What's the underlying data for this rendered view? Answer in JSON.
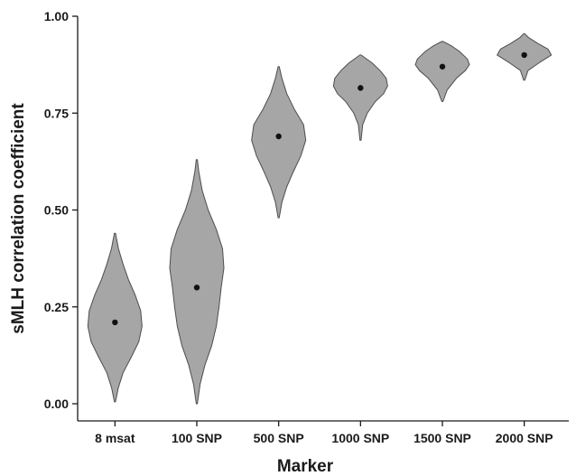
{
  "chart_data": {
    "type": "violin",
    "title": "",
    "xlabel": "Marker",
    "ylabel": "sMLH correlation coefficient",
    "ylim": [
      0,
      1
    ],
    "yticks": [
      {
        "value": 0.0,
        "label": "0.00"
      },
      {
        "value": 0.25,
        "label": "0.25"
      },
      {
        "value": 0.5,
        "label": "0.50"
      },
      {
        "value": 0.75,
        "label": "0.75"
      },
      {
        "value": 1.0,
        "label": "1.00"
      }
    ],
    "grid": false,
    "legend": "none",
    "colors": {
      "violin_fill": "#a6a6a6",
      "violin_stroke": "#4d4d4d",
      "point": "#111111",
      "axis": "#1a1a1a"
    },
    "categories": [
      "8 msat",
      "100 SNP",
      "500 SNP",
      "1000 SNP",
      "1500 SNP",
      "2000 SNP"
    ],
    "series": [
      {
        "category": "8 msat",
        "median": 0.21,
        "min": 0.005,
        "max": 0.44,
        "density": [
          [
            0.005,
            0.01
          ],
          [
            0.04,
            0.12
          ],
          [
            0.08,
            0.3
          ],
          [
            0.12,
            0.6
          ],
          [
            0.16,
            0.88
          ],
          [
            0.2,
            1.0
          ],
          [
            0.24,
            0.95
          ],
          [
            0.28,
            0.75
          ],
          [
            0.32,
            0.5
          ],
          [
            0.36,
            0.3
          ],
          [
            0.4,
            0.13
          ],
          [
            0.44,
            0.01
          ]
        ]
      },
      {
        "category": "100 SNP",
        "median": 0.3,
        "min": 0.0,
        "max": 0.63,
        "density": [
          [
            0.0,
            0.01
          ],
          [
            0.05,
            0.12
          ],
          [
            0.1,
            0.3
          ],
          [
            0.15,
            0.55
          ],
          [
            0.2,
            0.72
          ],
          [
            0.25,
            0.82
          ],
          [
            0.3,
            0.9
          ],
          [
            0.35,
            1.0
          ],
          [
            0.4,
            0.95
          ],
          [
            0.45,
            0.72
          ],
          [
            0.5,
            0.42
          ],
          [
            0.55,
            0.2
          ],
          [
            0.6,
            0.07
          ],
          [
            0.63,
            0.01
          ]
        ]
      },
      {
        "category": "500 SNP",
        "median": 0.69,
        "min": 0.48,
        "max": 0.87,
        "density": [
          [
            0.48,
            0.01
          ],
          [
            0.52,
            0.12
          ],
          [
            0.56,
            0.3
          ],
          [
            0.6,
            0.55
          ],
          [
            0.64,
            0.82
          ],
          [
            0.68,
            1.0
          ],
          [
            0.72,
            0.92
          ],
          [
            0.76,
            0.58
          ],
          [
            0.8,
            0.3
          ],
          [
            0.84,
            0.12
          ],
          [
            0.87,
            0.01
          ]
        ]
      },
      {
        "category": "1000 SNP",
        "median": 0.815,
        "min": 0.68,
        "max": 0.9,
        "density": [
          [
            0.68,
            0.01
          ],
          [
            0.72,
            0.08
          ],
          [
            0.75,
            0.25
          ],
          [
            0.78,
            0.55
          ],
          [
            0.8,
            0.85
          ],
          [
            0.82,
            1.0
          ],
          [
            0.84,
            0.95
          ],
          [
            0.86,
            0.72
          ],
          [
            0.88,
            0.42
          ],
          [
            0.9,
            0.01
          ]
        ]
      },
      {
        "category": "1500 SNP",
        "median": 0.87,
        "min": 0.78,
        "max": 0.935,
        "density": [
          [
            0.78,
            0.01
          ],
          [
            0.81,
            0.18
          ],
          [
            0.84,
            0.52
          ],
          [
            0.86,
            0.85
          ],
          [
            0.875,
            1.0
          ],
          [
            0.89,
            0.92
          ],
          [
            0.91,
            0.62
          ],
          [
            0.925,
            0.3
          ],
          [
            0.935,
            0.01
          ]
        ]
      },
      {
        "category": "2000 SNP",
        "median": 0.9,
        "min": 0.835,
        "max": 0.955,
        "density": [
          [
            0.835,
            0.01
          ],
          [
            0.86,
            0.14
          ],
          [
            0.88,
            0.55
          ],
          [
            0.9,
            1.0
          ],
          [
            0.915,
            0.88
          ],
          [
            0.93,
            0.5
          ],
          [
            0.945,
            0.16
          ],
          [
            0.955,
            0.01
          ]
        ]
      }
    ]
  }
}
